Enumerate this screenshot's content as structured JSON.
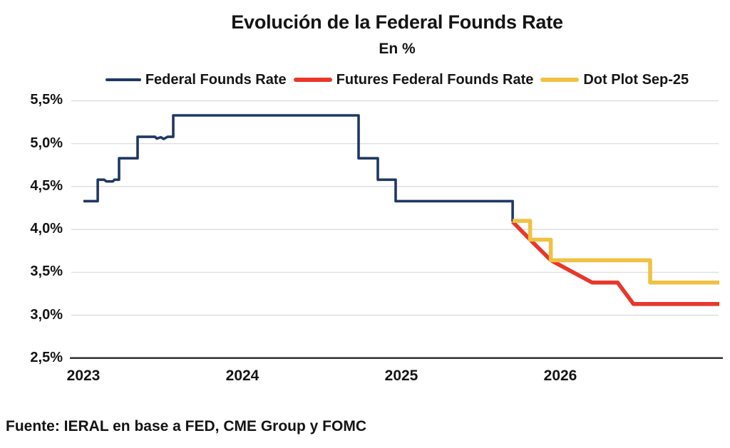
{
  "chart_data": {
    "type": "line",
    "title": "Evolución de la Federal Founds Rate",
    "subtitle": "En %",
    "source": "Fuente: IERAL en base a FED, CME Group y FOMC",
    "legend_position": "top",
    "grid": "horizontal",
    "axis_color": "#262626",
    "gridline_color": "#d9d9d9",
    "xlim": [
      2023,
      2027
    ],
    "ylim": [
      2.5,
      5.5
    ],
    "x_ticks": [
      {
        "label": "2023",
        "year": 2023
      },
      {
        "label": "2024",
        "year": 2024
      },
      {
        "label": "2025",
        "year": 2025
      },
      {
        "label": "2026",
        "year": 2026
      }
    ],
    "y_ticks": [
      {
        "label": "5,5%",
        "value": 5.5
      },
      {
        "label": "5,0%",
        "value": 5.0
      },
      {
        "label": "4,5%",
        "value": 4.5
      },
      {
        "label": "4,0%",
        "value": 4.0
      },
      {
        "label": "3,5%",
        "value": 3.5
      },
      {
        "label": "3,0%",
        "value": 3.0
      },
      {
        "label": "2,5%",
        "value": 2.5
      }
    ],
    "series": [
      {
        "name": "Federal Founds Rate",
        "color": "#1f3864",
        "stroke_width": 3.6,
        "points": [
          [
            2023.0,
            4.33
          ],
          [
            2023.09,
            4.33
          ],
          [
            2023.09,
            4.58
          ],
          [
            2023.13,
            4.58
          ],
          [
            2023.145,
            4.56
          ],
          [
            2023.185,
            4.56
          ],
          [
            2023.195,
            4.58
          ],
          [
            2023.224,
            4.58
          ],
          [
            2023.224,
            4.83
          ],
          [
            2023.341,
            4.83
          ],
          [
            2023.341,
            5.08
          ],
          [
            2023.45,
            5.08
          ],
          [
            2023.462,
            5.06
          ],
          [
            2023.487,
            5.075
          ],
          [
            2023.505,
            5.055
          ],
          [
            2023.53,
            5.08
          ],
          [
            2023.565,
            5.08
          ],
          [
            2023.565,
            5.33
          ],
          [
            2024.731,
            5.33
          ],
          [
            2024.731,
            4.83
          ],
          [
            2024.852,
            4.83
          ],
          [
            2024.852,
            4.58
          ],
          [
            2024.964,
            4.58
          ],
          [
            2024.964,
            4.33
          ],
          [
            2025.7,
            4.33
          ],
          [
            2025.7,
            4.09
          ]
        ]
      },
      {
        "name": "Futures Federal Founds Rate",
        "color": "#e8372b",
        "stroke_width": 5.6,
        "points": [
          [
            2025.7,
            4.09
          ],
          [
            2025.81,
            3.88
          ],
          [
            2025.94,
            3.64
          ],
          [
            2026.2,
            3.38
          ],
          [
            2026.36,
            3.38
          ],
          [
            2026.46,
            3.13
          ],
          [
            2027.0,
            3.13
          ]
        ]
      },
      {
        "name": "Dot Plot Sep-25",
        "color": "#f0c142",
        "stroke_width": 5.6,
        "points": [
          [
            2025.7,
            4.1
          ],
          [
            2025.81,
            4.1
          ],
          [
            2025.81,
            3.88
          ],
          [
            2025.94,
            3.88
          ],
          [
            2025.94,
            3.64
          ],
          [
            2026.565,
            3.64
          ],
          [
            2026.565,
            3.38
          ],
          [
            2027.0,
            3.38
          ]
        ]
      }
    ]
  }
}
